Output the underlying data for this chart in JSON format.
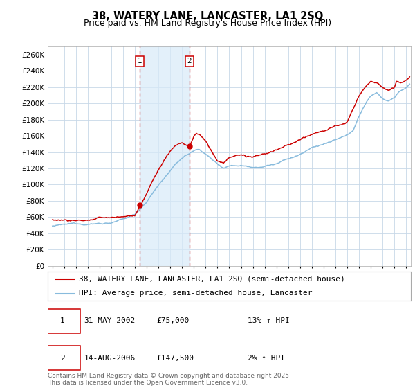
{
  "title": "38, WATERY LANE, LANCASTER, LA1 2SQ",
  "subtitle": "Price paid vs. HM Land Registry's House Price Index (HPI)",
  "background_color": "#ffffff",
  "plot_bg_color": "#ffffff",
  "grid_color": "#c8d8e8",
  "shade_color": "#d8eaf8",
  "marker1_x": 2002.42,
  "marker1_y": 75000,
  "marker2_x": 2006.62,
  "marker2_y": 147500,
  "vline1_x": 2002.42,
  "vline2_x": 2006.62,
  "legend_label1": "38, WATERY LANE, LANCASTER, LA1 2SQ (semi-detached house)",
  "legend_label2": "HPI: Average price, semi-detached house, Lancaster",
  "table_row1": [
    "1",
    "31-MAY-2002",
    "£75,000",
    "13% ↑ HPI"
  ],
  "table_row2": [
    "2",
    "14-AUG-2006",
    "£147,500",
    "2% ↑ HPI"
  ],
  "footnote": "Contains HM Land Registry data © Crown copyright and database right 2025.\nThis data is licensed under the Open Government Licence v3.0.",
  "ylim": [
    0,
    270000
  ],
  "yticks": [
    0,
    20000,
    40000,
    60000,
    80000,
    100000,
    120000,
    140000,
    160000,
    180000,
    200000,
    220000,
    240000,
    260000
  ],
  "xlim_start": 1994.6,
  "xlim_end": 2025.4,
  "red_color": "#cc0000",
  "blue_color": "#88bbdd",
  "title_fontsize": 10.5,
  "subtitle_fontsize": 9,
  "axis_fontsize": 7.5,
  "legend_fontsize": 8,
  "table_fontsize": 8,
  "footnote_fontsize": 6.5
}
